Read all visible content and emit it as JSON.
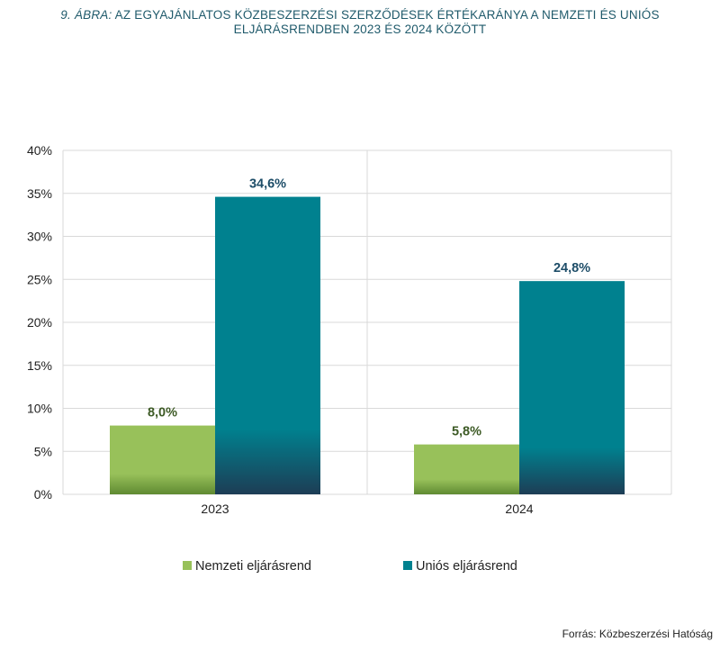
{
  "title": {
    "label": "9. ÁBRA:",
    "line1": "AZ EGYAJÁNLATOS KÖZBESZERZÉSI SZERZŐDÉSEK ÉRTÉKARÁNYA A NEMZETI ÉS UNIÓS",
    "line2": "ELJÁRÁSRENDBEN 2023 ÉS 2024 KÖZÖTT"
  },
  "source": "Forrás: Közbeszerzési Hatóság",
  "colors": {
    "nemzeti": "#98c15a",
    "unios_top": "#00818f",
    "unios_bottom": "#1d3d55",
    "nemzeti_label": "#3d5a25",
    "unios_label": "#1d4d68",
    "grid": "#d9d9d9",
    "axis_text": "#222222"
  },
  "chart_data": {
    "type": "bar",
    "categories": [
      "2023",
      "2024"
    ],
    "series": [
      {
        "name": "Nemzeti eljárásrend",
        "values": [
          8.0,
          5.8
        ],
        "labels": [
          "8,0%",
          "5,8%"
        ]
      },
      {
        "name": "Uniós eljárásrend",
        "values": [
          34.6,
          24.8
        ],
        "labels": [
          "34,6%",
          "24,8%"
        ]
      }
    ],
    "ylim": [
      0,
      40
    ],
    "yticks": [
      "0%",
      "5%",
      "10%",
      "15%",
      "20%",
      "25%",
      "30%",
      "35%",
      "40%"
    ],
    "grid": true,
    "legend": "bottom"
  }
}
